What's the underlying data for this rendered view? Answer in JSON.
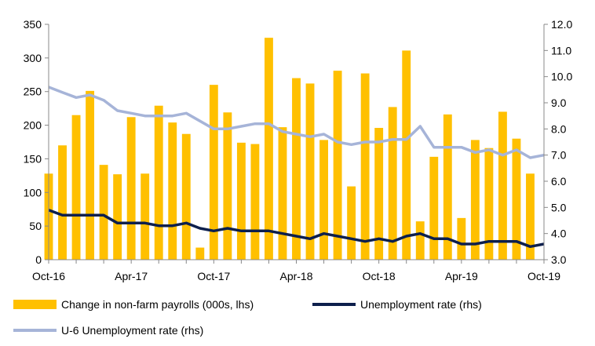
{
  "chart_data": {
    "type": "bar+line",
    "categories": [
      "Oct-16",
      "Nov-16",
      "Dec-16",
      "Jan-17",
      "Feb-17",
      "Mar-17",
      "Apr-17",
      "May-17",
      "Jun-17",
      "Jul-17",
      "Aug-17",
      "Sep-17",
      "Oct-17",
      "Nov-17",
      "Dec-17",
      "Jan-18",
      "Feb-18",
      "Mar-18",
      "Apr-18",
      "May-18",
      "Jun-18",
      "Jul-18",
      "Aug-18",
      "Sep-18",
      "Oct-18",
      "Nov-18",
      "Dec-18",
      "Jan-19",
      "Feb-19",
      "Mar-19",
      "Apr-19",
      "May-19",
      "Jun-19",
      "Jul-19",
      "Aug-19",
      "Sep-19",
      "Oct-19"
    ],
    "x_tick_labels": [
      "Oct-16",
      "Apr-17",
      "Oct-17",
      "Apr-18",
      "Oct-18",
      "Apr-19",
      "Oct-19"
    ],
    "series": [
      {
        "name": "Change in non-farm payrolls (000s, lhs)",
        "type": "bar",
        "axis": "left",
        "color": "#FFC000",
        "values": [
          128,
          170,
          215,
          251,
          141,
          127,
          212,
          128,
          229,
          204,
          187,
          18,
          260,
          219,
          174,
          172,
          330,
          197,
          270,
          262,
          178,
          281,
          109,
          277,
          196,
          227,
          311,
          57,
          153,
          216,
          62,
          178,
          166,
          220,
          180,
          128,
          null
        ]
      },
      {
        "name": "Unemployment rate (rhs)",
        "type": "line",
        "axis": "right",
        "color": "#0D1F4C",
        "values": [
          4.9,
          4.7,
          4.7,
          4.7,
          4.7,
          4.4,
          4.4,
          4.4,
          4.3,
          4.3,
          4.4,
          4.2,
          4.1,
          4.2,
          4.1,
          4.1,
          4.1,
          4.0,
          3.9,
          3.8,
          4.0,
          3.9,
          3.8,
          3.7,
          3.8,
          3.7,
          3.9,
          4.0,
          3.8,
          3.8,
          3.6,
          3.6,
          3.7,
          3.7,
          3.7,
          3.5,
          3.6
        ]
      },
      {
        "name": "U-6 Unemployment rate (rhs)",
        "type": "line",
        "axis": "right",
        "color": "#A6B4D8",
        "values": [
          9.6,
          9.4,
          9.2,
          9.3,
          9.1,
          8.7,
          8.6,
          8.5,
          8.5,
          8.5,
          8.6,
          8.3,
          8.0,
          8.0,
          8.1,
          8.2,
          8.2,
          7.9,
          7.8,
          7.7,
          7.8,
          7.5,
          7.4,
          7.5,
          7.5,
          7.6,
          7.6,
          8.1,
          7.3,
          7.3,
          7.3,
          7.1,
          7.2,
          7.0,
          7.2,
          6.9,
          7.0
        ]
      }
    ],
    "y_left": {
      "range": [
        0,
        350
      ],
      "ticks": [
        "0",
        "50",
        "100",
        "150",
        "200",
        "250",
        "300",
        "350"
      ]
    },
    "y_right": {
      "range": [
        3.0,
        12.0
      ],
      "ticks": [
        "3.0",
        "4.0",
        "5.0",
        "6.0",
        "7.0",
        "8.0",
        "9.0",
        "10.0",
        "11.0",
        "12.0"
      ]
    },
    "grid": false,
    "legend_position": "bottom"
  }
}
